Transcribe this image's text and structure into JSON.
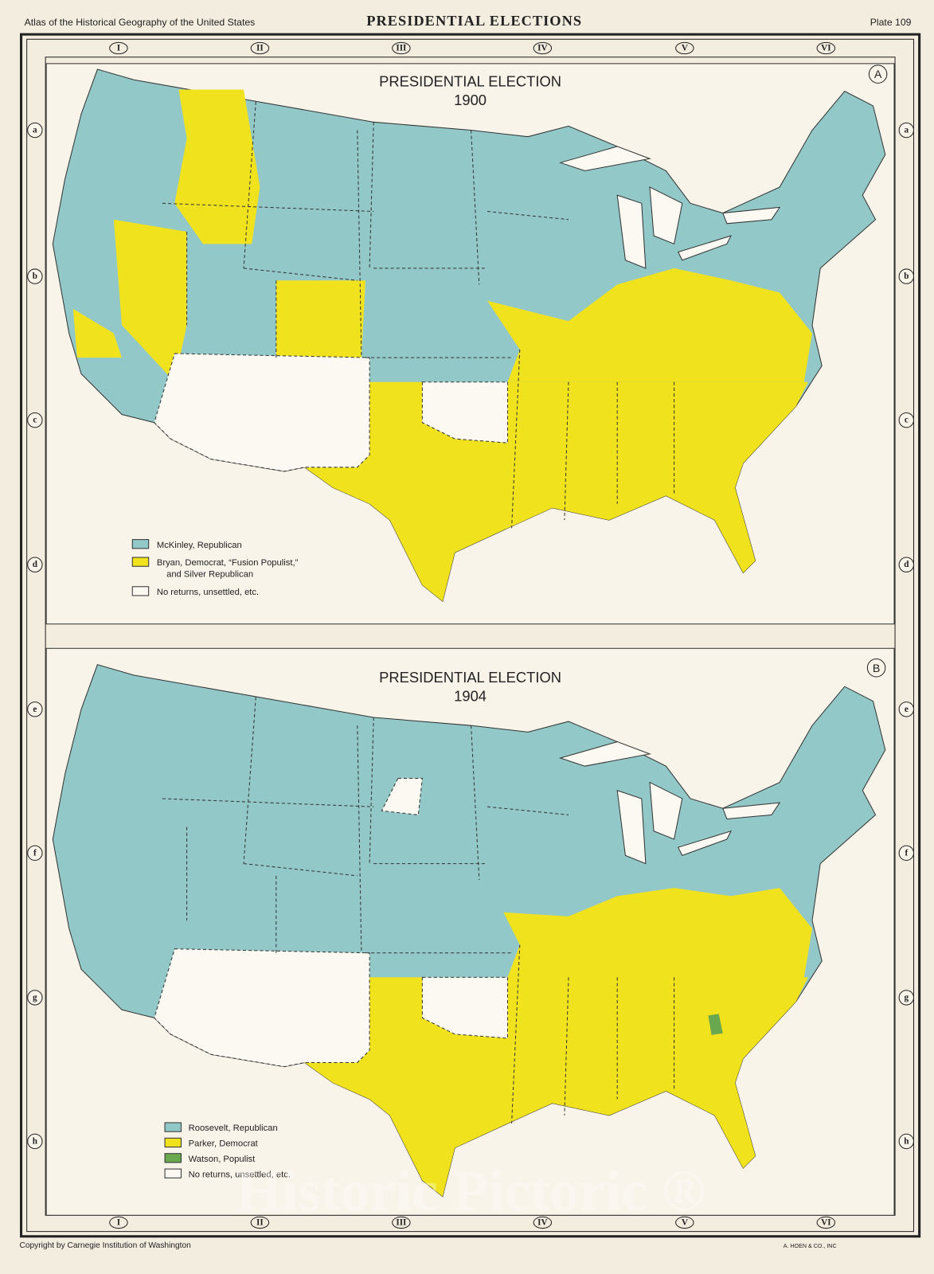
{
  "header": {
    "left": "Atlas of the Historical Geography of the United States",
    "title": "PRESIDENTIAL ELECTIONS",
    "plate": "Plate 109"
  },
  "columns": [
    "I",
    "II",
    "III",
    "IV",
    "V",
    "VI"
  ],
  "rows": [
    "a",
    "b",
    "c",
    "d",
    "e",
    "f",
    "g",
    "h"
  ],
  "maps": [
    {
      "letter": "A",
      "title": "PRESIDENTIAL ELECTION",
      "year": "1900",
      "legend": [
        {
          "lines": [
            "McKinley, Republican"
          ],
          "color": "#93c8c9"
        },
        {
          "lines": [
            "Bryan, Democrat, “Fusion Populist,”",
            "and Silver Republican"
          ],
          "color": "#f1e21e"
        },
        {
          "lines": [
            "No returns, unsettled, etc."
          ],
          "color": "#fbf9f1"
        }
      ]
    },
    {
      "letter": "B",
      "title": "PRESIDENTIAL ELECTION",
      "year": "1904",
      "legend": [
        {
          "lines": [
            "Roosevelt, Republican"
          ],
          "color": "#93c8c9"
        },
        {
          "lines": [
            "Parker, Democrat"
          ],
          "color": "#f1e21e"
        },
        {
          "lines": [
            "Watson, Populist"
          ],
          "color": "#6aa84f"
        },
        {
          "lines": [
            "No returns, unsettled, etc."
          ],
          "color": "#fbf9f1"
        }
      ]
    }
  ],
  "footer": {
    "copyright": "Copyright by Carnegie Institution of Washington",
    "printer": "A. HOEN & CO., INC"
  },
  "watermark": "Historic Pictoric ®"
}
